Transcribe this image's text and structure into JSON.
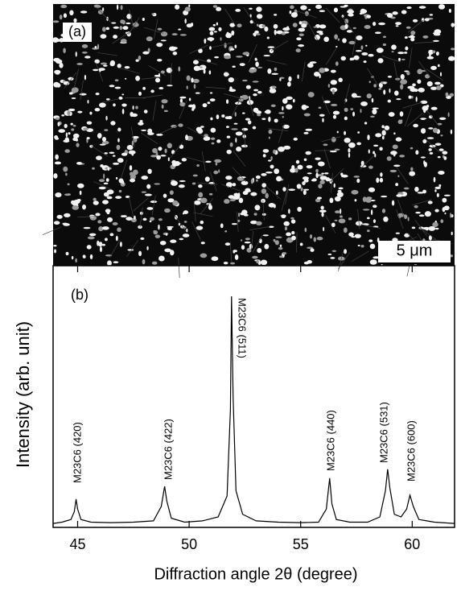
{
  "image_panel": {
    "label": "(a)",
    "scale_bar": "5 μm"
  },
  "chart_data": {
    "type": "line",
    "panel_label": "(b)",
    "x_label": "Diffraction angle 2θ  (degree)",
    "y_label": "Intensity (arb. unit)",
    "x": [
      43.9,
      44.3,
      44.7,
      44.85,
      44.93,
      45.0,
      45.15,
      45.6,
      46.5,
      47.5,
      48.4,
      48.75,
      48.9,
      49.0,
      49.2,
      49.8,
      50.6,
      51.3,
      51.7,
      51.85,
      51.9,
      51.97,
      52.1,
      52.4,
      53.0,
      54.0,
      55.0,
      55.8,
      56.15,
      56.3,
      56.4,
      56.6,
      57.2,
      58.0,
      58.55,
      58.8,
      58.9,
      59.0,
      59.2,
      59.5,
      59.75,
      59.9,
      60.05,
      60.3,
      61.0,
      61.9
    ],
    "values": [
      1.5,
      2,
      3,
      6,
      10.8,
      7,
      3,
      2,
      1.8,
      2,
      2.5,
      8,
      15.7,
      10,
      3.5,
      2,
      2.5,
      4,
      12,
      45,
      88.3,
      50,
      14,
      5,
      2.5,
      2,
      1.8,
      2,
      7,
      18.8,
      9,
      3,
      2,
      2,
      4,
      14,
      22.2,
      15,
      5,
      4,
      7,
      12.3,
      8,
      3,
      2,
      1.5
    ],
    "color": "#000000",
    "xlim": [
      43.9,
      61.9
    ],
    "xticks": [
      45,
      50,
      55,
      60
    ],
    "ylim": [
      0,
      100
    ],
    "annotations": [
      "M23C6 (420)",
      "M23C6 (422)",
      "M23C6 (511)",
      "M23C6 (440)",
      "M23C6 (531)",
      "M23C6 (600)"
    ]
  }
}
